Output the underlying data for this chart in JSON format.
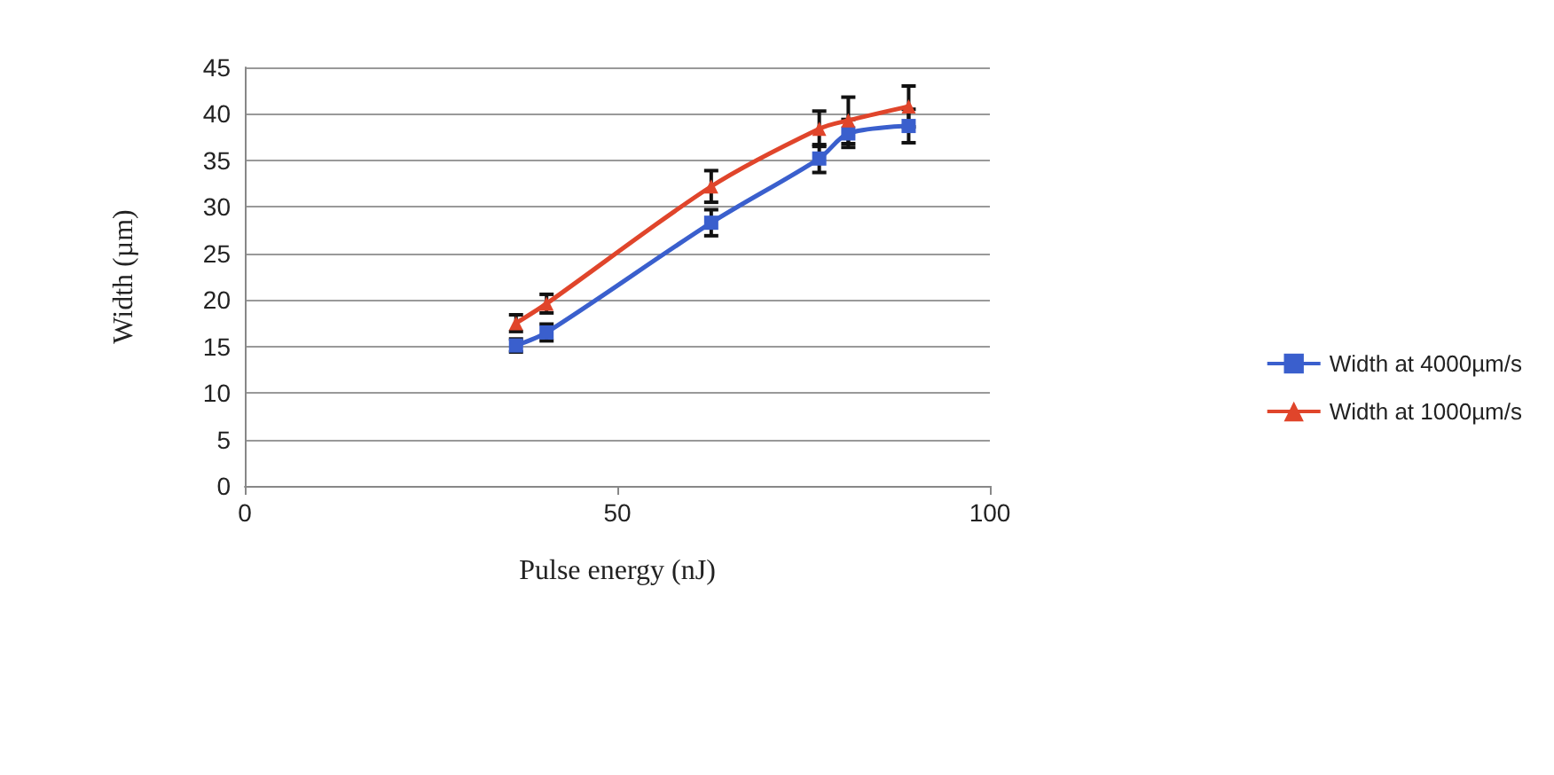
{
  "chart_data": {
    "type": "line",
    "xlabel": "Pulse energy (nJ)",
    "ylabel": "Width (µm)",
    "xlim": [
      0,
      100
    ],
    "xticks": [
      0,
      50,
      100
    ],
    "ylim": [
      0,
      45
    ],
    "yticks": [
      0,
      5,
      10,
      15,
      20,
      25,
      30,
      35,
      40,
      45
    ],
    "grid": "y",
    "legend": "right",
    "series": [
      {
        "name": "Width at 4000µm/s",
        "color": "#3a5fcd",
        "marker": "square",
        "x": [
          36.4,
          40.5,
          62.6,
          77.1,
          81,
          89.1
        ],
        "values": [
          15.1,
          16.5,
          28.3,
          35.2,
          37.9,
          38.7
        ],
        "errors": [
          0.7,
          0.9,
          1.4,
          1.5,
          1.5,
          1.8
        ]
      },
      {
        "name": "Width at 1000µm/s",
        "color": "#e0452b",
        "marker": "triangle",
        "x": [
          36.4,
          40.5,
          62.6,
          77.1,
          81,
          89.1
        ],
        "values": [
          17.5,
          19.6,
          32.2,
          38.4,
          39.3,
          40.8
        ],
        "errors": [
          0.9,
          1,
          1.7,
          1.9,
          2.5,
          2.2
        ]
      }
    ]
  }
}
